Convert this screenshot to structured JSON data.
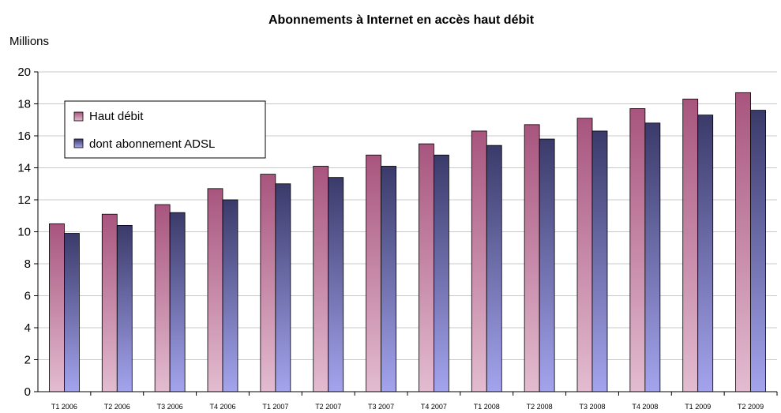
{
  "chart_data": {
    "type": "bar",
    "title": "Abonnements à Internet en accès haut débit",
    "ylabel": "Millions",
    "xlabel": "",
    "ylim": [
      0,
      20
    ],
    "yticks": [
      0,
      2,
      4,
      6,
      8,
      10,
      12,
      14,
      16,
      18,
      20
    ],
    "grid": true,
    "legend_position": "top-left",
    "categories": [
      "T1 2006",
      "T2 2006",
      "T3 2006",
      "T4 2006",
      "T1 2007",
      "T2 2007",
      "T3 2007",
      "T4 2007",
      "T1 2008",
      "T2 2008",
      "T3 2008",
      "T4 2008",
      "T1 2009",
      "T2 2009"
    ],
    "series": [
      {
        "name": "Haut débit",
        "color": "#b25f86",
        "values": [
          10.5,
          11.1,
          11.7,
          12.7,
          13.6,
          14.1,
          14.8,
          15.5,
          16.3,
          16.7,
          17.1,
          17.7,
          18.3,
          18.7
        ]
      },
      {
        "name": "dont abonnement ADSL",
        "color": "#4a4a80",
        "values": [
          9.9,
          10.4,
          11.2,
          12.0,
          13.0,
          13.4,
          14.1,
          14.8,
          15.4,
          15.8,
          16.3,
          16.8,
          17.3,
          17.6
        ]
      }
    ]
  }
}
